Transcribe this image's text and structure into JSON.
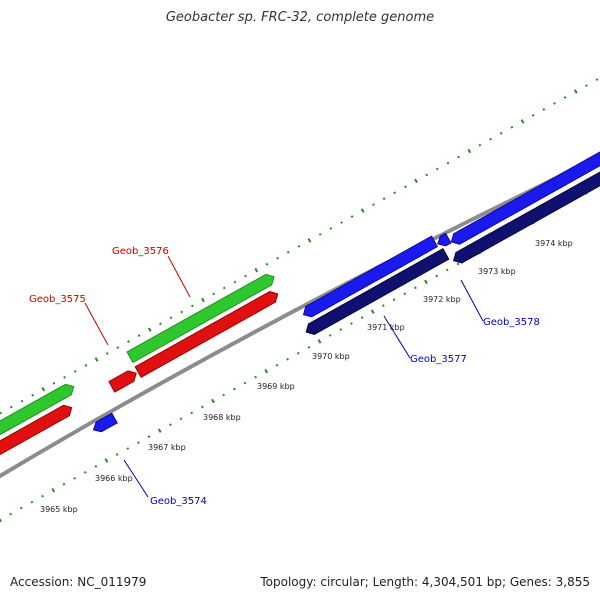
{
  "title": "Geobacter sp. FRC-32, complete genome",
  "footer": {
    "accession": "Accession: NC_011979",
    "summary": "Topology: circular; Length: 4,304,501 bp; Genes: 3,855"
  },
  "colors": {
    "background": "#ffffff",
    "backbone": "#8c8c8c",
    "forward_cds": "#e01010",
    "forward_rna": "#2ec82e",
    "reverse_cds": "#1a1aee",
    "reverse_rna": "#101070",
    "gc_ticks": "#228b22",
    "forward_label": "#cc0000",
    "reverse_label": "#0000bb"
  },
  "scale": {
    "ticks": [
      {
        "pos": 3965,
        "label": "3965 kbp"
      },
      {
        "pos": 3966,
        "label": "3966 kbp"
      },
      {
        "pos": 3967,
        "label": "3967 kbp"
      },
      {
        "pos": 3968,
        "label": "3968 kbp"
      },
      {
        "pos": 3969,
        "label": "3969 kbp"
      },
      {
        "pos": 3970,
        "label": "3970 kbp"
      },
      {
        "pos": 3971,
        "label": "3971 kbp"
      },
      {
        "pos": 3972,
        "label": "3972 kbp"
      },
      {
        "pos": 3973,
        "label": "3973 kbp"
      },
      {
        "pos": 3974,
        "label": "3974 kbp"
      }
    ]
  },
  "genes": [
    {
      "label": "Geob_3574",
      "strand": "reverse"
    },
    {
      "label": "Geob_3575",
      "strand": "forward"
    },
    {
      "label": "Geob_3576",
      "strand": "forward"
    },
    {
      "label": "Geob_3577",
      "strand": "reverse"
    },
    {
      "label": "Geob_3578",
      "strand": "reverse"
    }
  ]
}
